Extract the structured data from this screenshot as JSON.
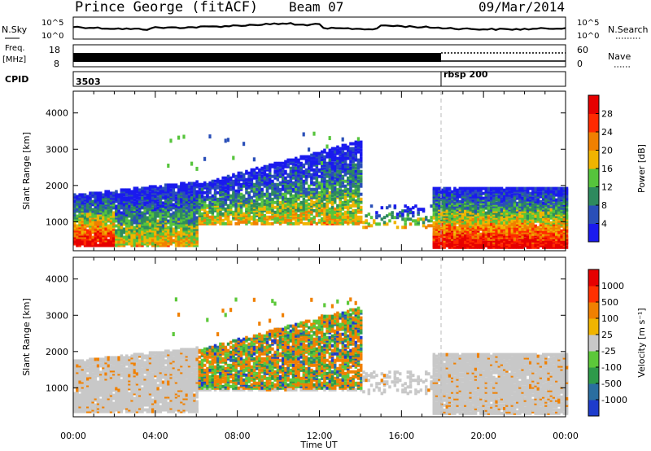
{
  "header": {
    "station": "Prince George (fitACF)",
    "beam": "Beam 07",
    "date": "09/Mar/2014"
  },
  "sky_panel": {
    "left_label": "N.Sky",
    "right_label": "N.Search",
    "tick_top": "10^5",
    "tick_bottom": "10^0",
    "right_tick_top": "10^5",
    "right_tick_bottom": "10^0"
  },
  "freq_panel": {
    "left_label_top": "Freq.",
    "left_label_unit": "[MHz]",
    "tick_top": "18",
    "tick_bottom": "8",
    "right_label": "Nave",
    "right_tick_top": "60",
    "right_tick_bottom": "0"
  },
  "cpid": {
    "label": "CPID",
    "value_1": "3503",
    "value_2": "rbsp 200"
  },
  "chart_data": [
    {
      "type": "heatmap",
      "panel": "power",
      "ylabel": "Slant Range [km]",
      "ylim": [
        200,
        4600
      ],
      "yticks": [
        "1000",
        "2000",
        "3000",
        "4000"
      ],
      "colorbar_label": "Power [dB]",
      "colorbar_ticks": [
        "4",
        "8",
        "12",
        "16",
        "20",
        "24",
        "28"
      ],
      "colors": [
        "#1a1aee",
        "#2a4fb8",
        "#2e8a5e",
        "#56c43c",
        "#f0b400",
        "#f08000",
        "#ff2a00",
        "#e60000"
      ]
    },
    {
      "type": "heatmap",
      "panel": "velocity",
      "ylabel": "Slant Range [km]",
      "ylim": [
        200,
        4600
      ],
      "yticks": [
        "1000",
        "2000",
        "3000",
        "4000"
      ],
      "colorbar_label": "Velocity [m s⁻¹]",
      "colorbar_ticks": [
        "1000",
        "500",
        "100",
        "25",
        "-25",
        "-100",
        "-500",
        "-1000"
      ],
      "colors": [
        "#1e3ccc",
        "#2a6ea0",
        "#2e9a4a",
        "#5cc83a",
        "#c8c8c8",
        "#f0b400",
        "#f08000",
        "#ff3000",
        "#e60000"
      ]
    }
  ],
  "x_axis": {
    "ticks": [
      "00:00",
      "04:00",
      "08:00",
      "12:00",
      "16:00",
      "20:00",
      "00:00"
    ],
    "label": "Time UT"
  }
}
